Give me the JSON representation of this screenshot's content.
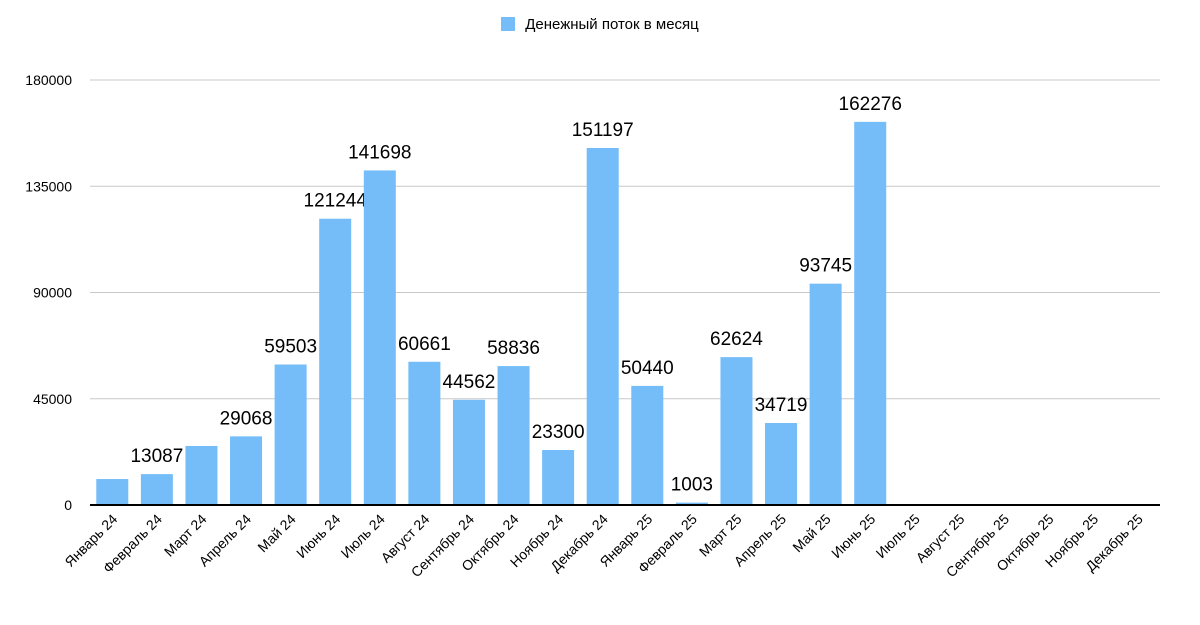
{
  "chart_data": {
    "type": "bar",
    "title": "",
    "legend": [
      "Денежный поток в месяц"
    ],
    "legend_position": "top",
    "xlabel": "",
    "ylabel": "",
    "ylim": [
      0,
      180000
    ],
    "yticks": [
      0,
      45000,
      90000,
      135000,
      180000
    ],
    "grid": true,
    "color": "#74bdf8",
    "categories": [
      "Январь 24",
      "Февраль 24",
      "Март 24",
      "Апрель 24",
      "Май 24",
      "Июнь 24",
      "Июль 24",
      "Август 24",
      "Сентябрь 24",
      "Октябрь 24",
      "Ноябрь 24",
      "Декабрь 24",
      "Январь 25",
      "Февраль 25",
      "Март 25",
      "Апрель 25",
      "Май 25",
      "Июнь 25",
      "Июль 25",
      "Август 25",
      "Сентябрь 25",
      "Октябрь 25",
      "Ноябрь 25",
      "Декабрь 25"
    ],
    "series": [
      {
        "name": "Денежный поток в месяц",
        "values": [
          11000,
          13087,
          25000,
          29068,
          59503,
          121244,
          141698,
          60661,
          44562,
          58836,
          23300,
          151197,
          50440,
          1003,
          62624,
          34719,
          93745,
          162276,
          null,
          null,
          null,
          null,
          null,
          null
        ],
        "labels": [
          "",
          "13087",
          "",
          "29068",
          "59503",
          "121244",
          "141698",
          "60661",
          "44562",
          "58836",
          "23300",
          "151197",
          "50440",
          "1003",
          "62624",
          "34719",
          "93745",
          "162276",
          "",
          "",
          "",
          "",
          "",
          ""
        ]
      }
    ]
  }
}
